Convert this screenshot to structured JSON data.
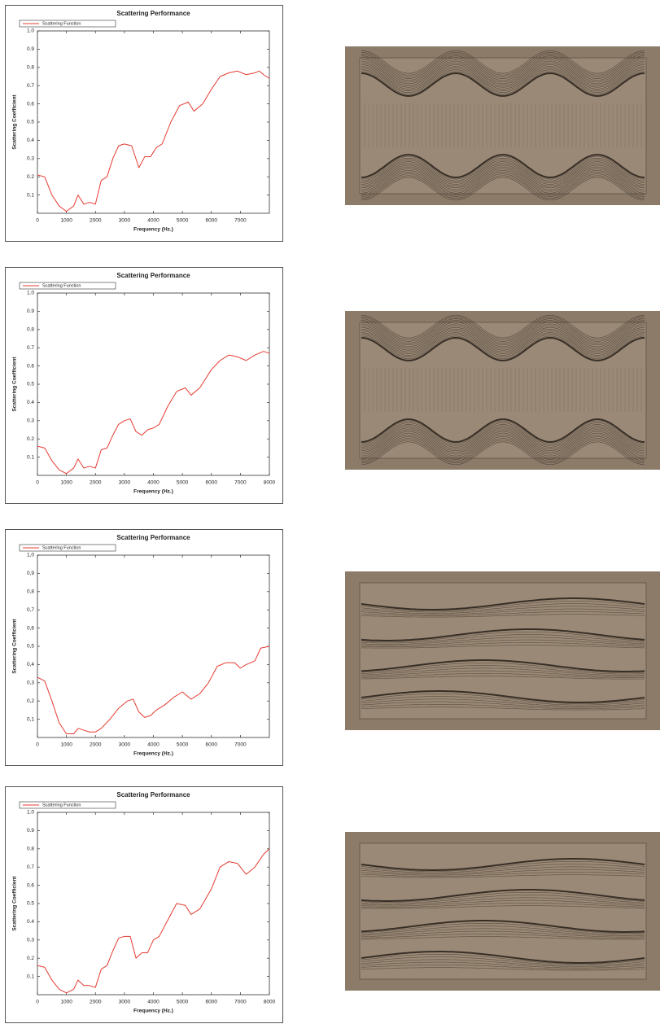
{
  "chart_data": [
    {
      "type": "line",
      "title": "Scattering Performance",
      "xlabel": "Frequency (Hz.)",
      "ylabel": "Scattering Coefficient",
      "x": [
        0,
        250,
        500,
        750,
        1000,
        1250,
        1400,
        1600,
        1800,
        2000,
        2200,
        2400,
        2600,
        2800,
        3000,
        3250,
        3500,
        3700,
        3900,
        4100,
        4300,
        4600,
        4900,
        5200,
        5400,
        5700,
        6000,
        6300,
        6600,
        6900,
        7200,
        7500,
        7650,
        7800,
        8000
      ],
      "series": [
        {
          "name": "Scattering Function",
          "color": "#e53b32",
          "values": [
            0.21,
            0.2,
            0.1,
            0.04,
            0.01,
            0.04,
            0.1,
            0.05,
            0.06,
            0.05,
            0.18,
            0.2,
            0.3,
            0.37,
            0.38,
            0.37,
            0.25,
            0.31,
            0.31,
            0.36,
            0.38,
            0.5,
            0.59,
            0.61,
            0.56,
            0.6,
            0.68,
            0.75,
            0.77,
            0.78,
            0.76,
            0.77,
            0.78,
            0.76,
            0.74
          ]
        }
      ],
      "xlim": [
        0,
        8000
      ],
      "xticks": [
        0,
        1000,
        2000,
        3000,
        4000,
        5000,
        6000,
        7000
      ],
      "ylim": [
        0,
        1
      ],
      "yticks": [
        0.1,
        0.2,
        0.3,
        0.4,
        0.5,
        0.6,
        0.7,
        0.8,
        0.9,
        {
          "value": 1,
          "label": "1.0"
        }
      ]
    },
    {
      "type": "line",
      "title": "Scattering Performance",
      "xlabel": "Frequency (Hz.)",
      "ylabel": "Scattering Coefficient",
      "x": [
        0,
        250,
        500,
        750,
        1000,
        1250,
        1400,
        1600,
        1800,
        2000,
        2200,
        2400,
        2600,
        2800,
        3000,
        3200,
        3400,
        3600,
        3800,
        4000,
        4200,
        4500,
        4800,
        5100,
        5300,
        5600,
        6000,
        6300,
        6600,
        6900,
        7200,
        7500,
        7800,
        8000
      ],
      "series": [
        {
          "name": "Scattering Function",
          "color": "#e53b32",
          "values": [
            0.16,
            0.15,
            0.08,
            0.03,
            0.01,
            0.04,
            0.09,
            0.04,
            0.05,
            0.04,
            0.14,
            0.15,
            0.22,
            0.28,
            0.3,
            0.31,
            0.24,
            0.22,
            0.25,
            0.26,
            0.28,
            0.38,
            0.46,
            0.48,
            0.44,
            0.48,
            0.58,
            0.63,
            0.66,
            0.65,
            0.63,
            0.66,
            0.68,
            0.67
          ]
        }
      ],
      "xlim": [
        0,
        8000
      ],
      "xticks": [
        0,
        1000,
        2000,
        3000,
        4000,
        5000,
        6000,
        7000,
        8000
      ],
      "ylim": [
        0,
        1
      ],
      "yticks": [
        0.1,
        0.2,
        0.3,
        0.4,
        0.5,
        0.6,
        0.7,
        0.8,
        0.9,
        {
          "value": 1,
          "label": "1.0"
        }
      ]
    },
    {
      "type": "line",
      "title": "Scattering Performance",
      "xlabel": "Frequency (Hz.)",
      "ylabel": "Scattering Coefficient",
      "x": [
        0,
        250,
        500,
        750,
        1000,
        1250,
        1400,
        1600,
        1800,
        2000,
        2200,
        2500,
        2800,
        3100,
        3300,
        3500,
        3700,
        3900,
        4100,
        4400,
        4700,
        5000,
        5300,
        5600,
        5900,
        6200,
        6500,
        6800,
        7000,
        7200,
        7500,
        7700,
        8000
      ],
      "series": [
        {
          "name": "Scattering Function",
          "color": "#e53b32",
          "values": [
            0.33,
            0.31,
            0.2,
            0.08,
            0.02,
            0.02,
            0.05,
            0.04,
            0.03,
            0.03,
            0.05,
            0.1,
            0.16,
            0.2,
            0.21,
            0.14,
            0.11,
            0.12,
            0.15,
            0.18,
            0.22,
            0.25,
            0.21,
            0.24,
            0.3,
            0.39,
            0.41,
            0.41,
            0.38,
            0.4,
            0.42,
            0.49,
            0.5
          ]
        }
      ],
      "xlim": [
        0,
        8000
      ],
      "xticks": [
        0,
        1000,
        2000,
        3000,
        4000,
        5000,
        6000,
        7000
      ],
      "ylim": [
        0,
        1
      ],
      "yticks": [
        {
          "value": 0.1,
          "label": "0,1"
        },
        {
          "value": 0.2,
          "label": "0,2"
        },
        {
          "value": 0.3,
          "label": "0,3"
        },
        {
          "value": 0.4,
          "label": "0,4"
        },
        {
          "value": 0.5,
          "label": "0,5"
        },
        {
          "value": 0.6,
          "label": "0,6"
        },
        {
          "value": 0.7,
          "label": "0,7"
        },
        {
          "value": 0.8,
          "label": "0,8"
        },
        {
          "value": 0.9,
          "label": "0,9"
        },
        {
          "value": 1,
          "label": "1,0"
        }
      ]
    },
    {
      "type": "line",
      "title": "Scattering Performance",
      "xlabel": "Frequency (Hz.)",
      "ylabel": "Scattering Coefficient",
      "x": [
        0,
        250,
        500,
        750,
        1000,
        1250,
        1400,
        1600,
        1800,
        2000,
        2200,
        2400,
        2600,
        2800,
        3000,
        3200,
        3400,
        3600,
        3800,
        4000,
        4200,
        4500,
        4800,
        5100,
        5300,
        5600,
        6000,
        6300,
        6600,
        6900,
        7200,
        7500,
        7800,
        8000
      ],
      "series": [
        {
          "name": "Scattering Function",
          "color": "#e53b32",
          "values": [
            0.16,
            0.15,
            0.08,
            0.03,
            0.01,
            0.03,
            0.08,
            0.05,
            0.05,
            0.04,
            0.14,
            0.16,
            0.24,
            0.31,
            0.32,
            0.32,
            0.2,
            0.23,
            0.23,
            0.3,
            0.32,
            0.41,
            0.5,
            0.49,
            0.44,
            0.47,
            0.58,
            0.7,
            0.73,
            0.72,
            0.66,
            0.7,
            0.77,
            0.8
          ]
        }
      ],
      "xlim": [
        0,
        8000
      ],
      "xticks": [
        0,
        1000,
        2000,
        3000,
        4000,
        5000,
        6000,
        7000,
        8000
      ],
      "ylim": [
        0,
        1
      ],
      "yticks": [
        0.1,
        0.2,
        0.3,
        0.4,
        0.5,
        0.6,
        0.7,
        0.8,
        0.9,
        {
          "value": 1,
          "label": "1.0"
        }
      ]
    }
  ]
}
